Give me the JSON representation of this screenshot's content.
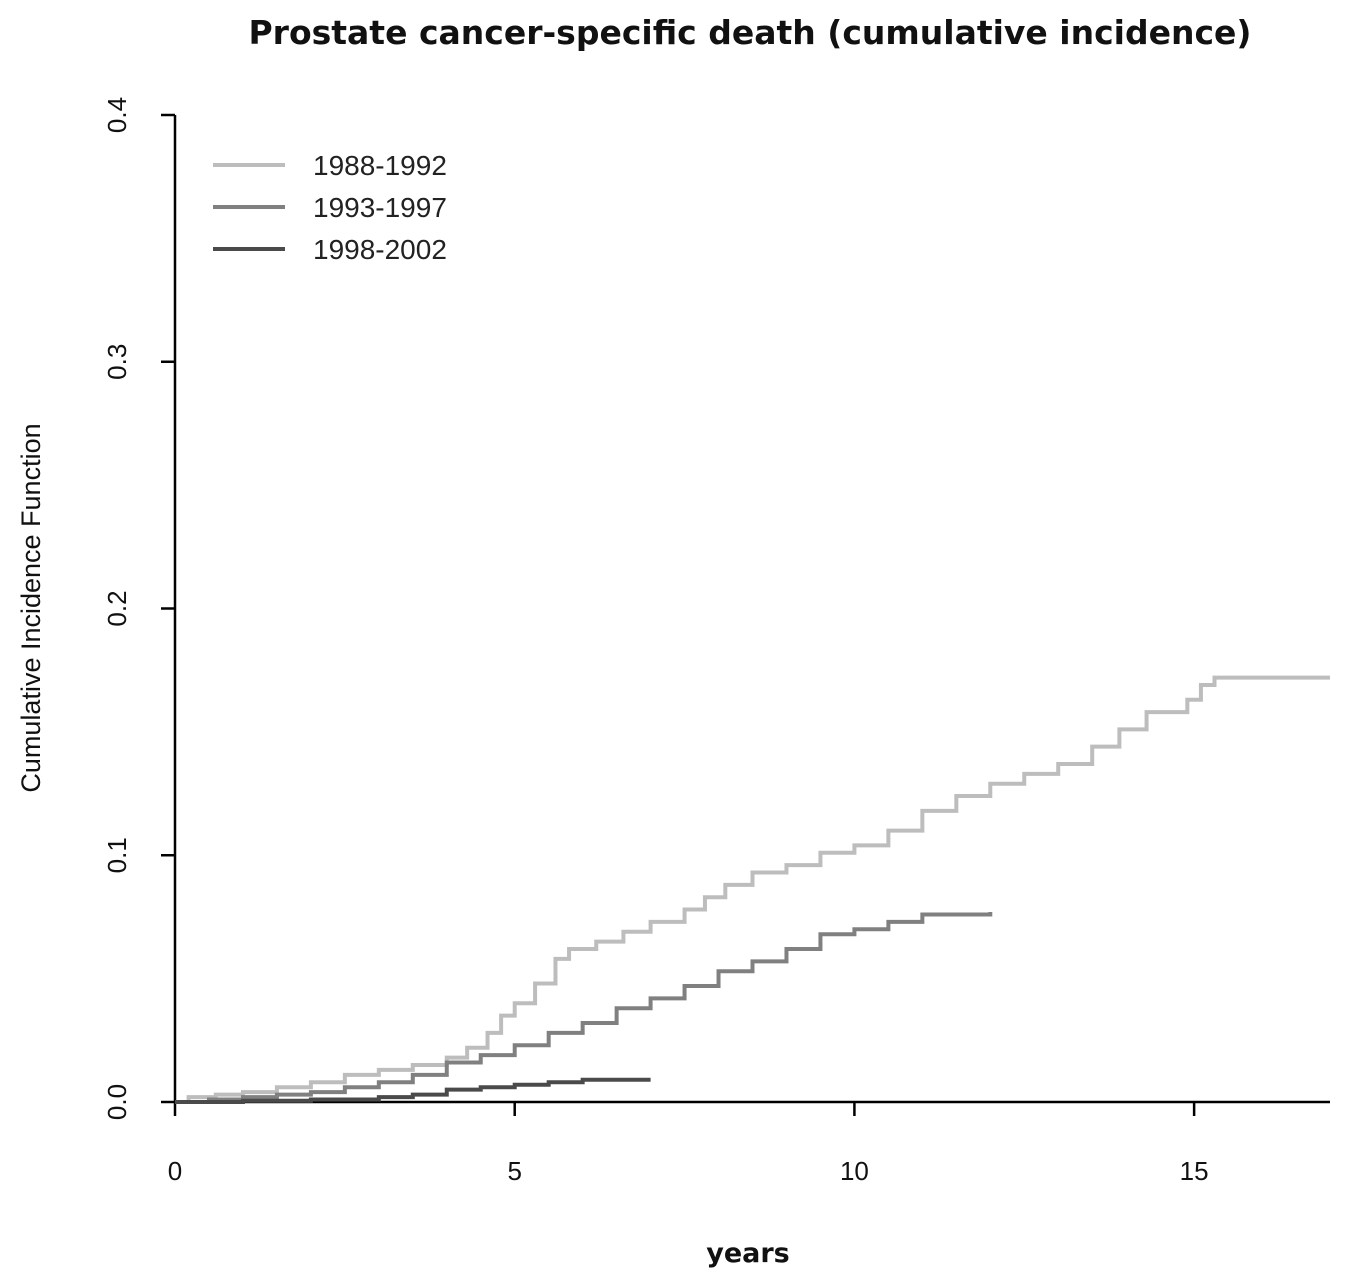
{
  "chart_data": {
    "type": "line",
    "title": "Prostate cancer-specific death (cumulative incidence)",
    "xlabel": "years",
    "ylabel": "Cumulative Incidence Function",
    "xlim": [
      0,
      17
    ],
    "ylim": [
      0,
      0.4
    ],
    "x_ticks": [
      "0",
      "5",
      "10",
      "15"
    ],
    "y_ticks": [
      "0.0",
      "0.1",
      "0.2",
      "0.3",
      "0.4"
    ],
    "grid": false,
    "legend_position": "top-left",
    "step": true,
    "series": [
      {
        "name": "1988-1992",
        "color": "#bdbdbd",
        "points": [
          [
            0,
            0
          ],
          [
            0.2,
            0.002
          ],
          [
            0.6,
            0.003
          ],
          [
            1.0,
            0.004
          ],
          [
            1.5,
            0.006
          ],
          [
            2.0,
            0.008
          ],
          [
            2.5,
            0.011
          ],
          [
            3.0,
            0.013
          ],
          [
            3.5,
            0.015
          ],
          [
            4.0,
            0.018
          ],
          [
            4.3,
            0.022
          ],
          [
            4.6,
            0.028
          ],
          [
            4.8,
            0.035
          ],
          [
            5.0,
            0.04
          ],
          [
            5.3,
            0.048
          ],
          [
            5.6,
            0.058
          ],
          [
            5.8,
            0.062
          ],
          [
            6.2,
            0.065
          ],
          [
            6.6,
            0.069
          ],
          [
            7.0,
            0.073
          ],
          [
            7.5,
            0.078
          ],
          [
            7.8,
            0.083
          ],
          [
            8.1,
            0.088
          ],
          [
            8.5,
            0.093
          ],
          [
            9.0,
            0.096
          ],
          [
            9.5,
            0.101
          ],
          [
            10.0,
            0.104
          ],
          [
            10.5,
            0.11
          ],
          [
            11.0,
            0.118
          ],
          [
            11.5,
            0.124
          ],
          [
            12.0,
            0.129
          ],
          [
            12.5,
            0.133
          ],
          [
            13.0,
            0.137
          ],
          [
            13.5,
            0.144
          ],
          [
            13.9,
            0.151
          ],
          [
            14.3,
            0.158
          ],
          [
            14.9,
            0.163
          ],
          [
            15.1,
            0.169
          ],
          [
            15.3,
            0.172
          ],
          [
            17.0,
            0.172
          ]
        ]
      },
      {
        "name": "1993-1997",
        "color": "#808080",
        "points": [
          [
            0,
            0
          ],
          [
            0.5,
            0.001
          ],
          [
            1.0,
            0.002
          ],
          [
            1.5,
            0.003
          ],
          [
            2.0,
            0.004
          ],
          [
            2.5,
            0.006
          ],
          [
            3.0,
            0.008
          ],
          [
            3.5,
            0.011
          ],
          [
            4.0,
            0.016
          ],
          [
            4.5,
            0.019
          ],
          [
            5.0,
            0.023
          ],
          [
            5.5,
            0.028
          ],
          [
            6.0,
            0.032
          ],
          [
            6.5,
            0.038
          ],
          [
            7.0,
            0.042
          ],
          [
            7.5,
            0.047
          ],
          [
            8.0,
            0.053
          ],
          [
            8.5,
            0.057
          ],
          [
            9.0,
            0.062
          ],
          [
            9.5,
            0.068
          ],
          [
            10.0,
            0.07
          ],
          [
            10.5,
            0.073
          ],
          [
            11.0,
            0.076
          ],
          [
            12.0,
            0.077
          ]
        ]
      },
      {
        "name": "1998-2002",
        "color": "#4a4a4a",
        "points": [
          [
            0,
            0
          ],
          [
            1.0,
            0.0005
          ],
          [
            2.0,
            0.001
          ],
          [
            3.0,
            0.002
          ],
          [
            3.5,
            0.003
          ],
          [
            4.0,
            0.005
          ],
          [
            4.5,
            0.006
          ],
          [
            5.0,
            0.007
          ],
          [
            5.5,
            0.008
          ],
          [
            6.0,
            0.009
          ],
          [
            7.0,
            0.009
          ]
        ]
      }
    ]
  }
}
